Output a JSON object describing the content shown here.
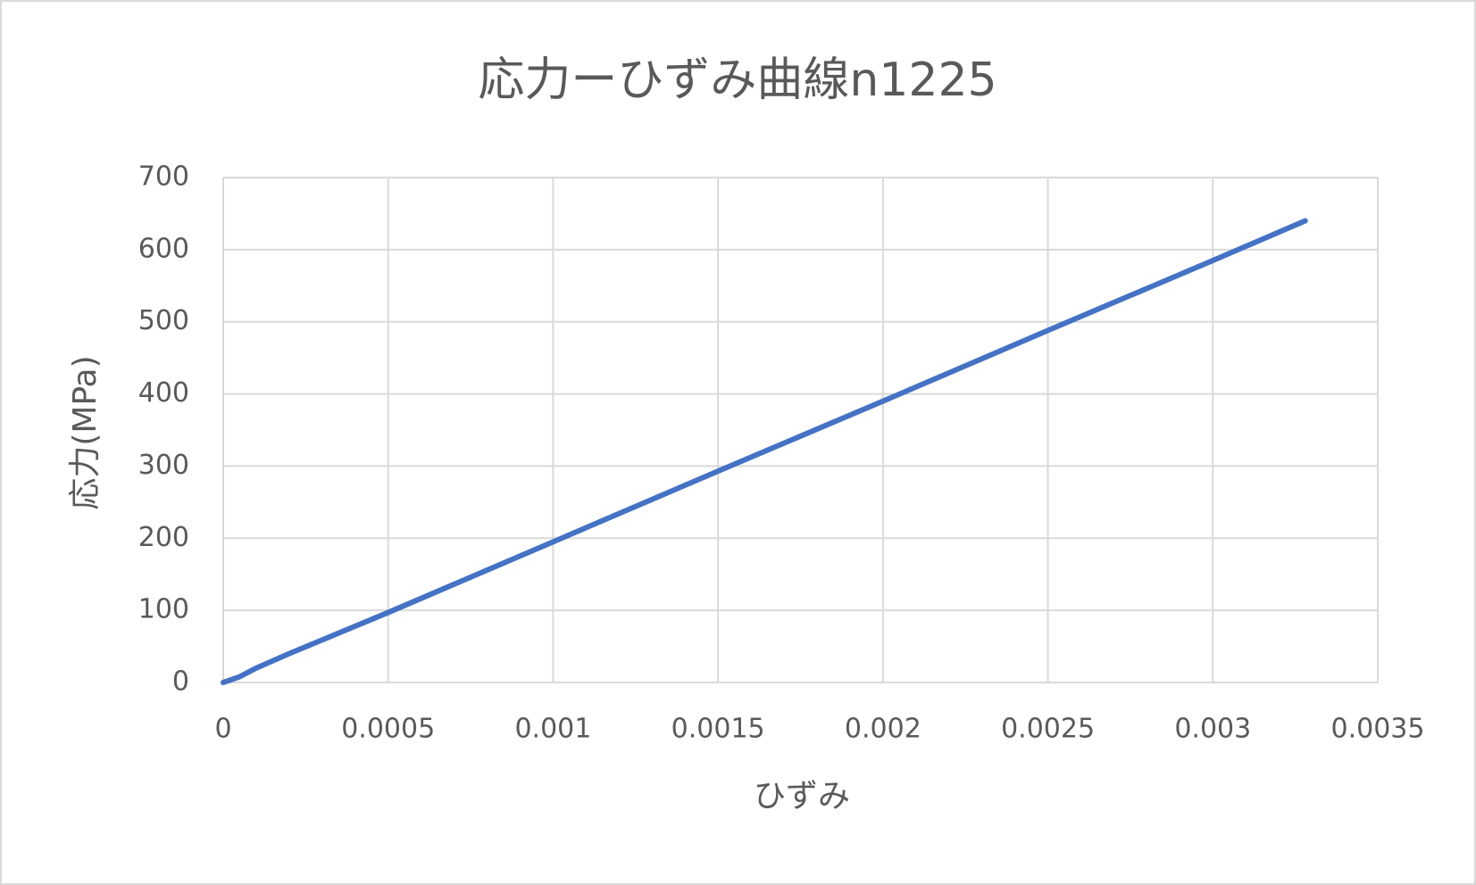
{
  "chart_data": {
    "type": "line",
    "title": "応力ーひずみ曲線n1225",
    "x_label": "ひずみ",
    "y_label": "応力(MPa)",
    "x": [
      0,
      5e-05,
      0.0001,
      0.0002,
      0.0005,
      0.001,
      0.0015,
      0.002,
      0.0025,
      0.003,
      0.00328
    ],
    "series": [
      {
        "name": "応力",
        "color": "#4472c4",
        "values": [
          0,
          8,
          20,
          40,
          97,
          195,
          293,
          390,
          488,
          585,
          640
        ]
      }
    ],
    "xlim": [
      0,
      0.0035
    ],
    "xticks": [
      0,
      0.0005,
      0.001,
      0.0015,
      0.002,
      0.0025,
      0.003,
      0.0035
    ],
    "ylim": [
      0,
      700
    ],
    "yticks": [
      0,
      100,
      200,
      300,
      400,
      500,
      600,
      700
    ],
    "grid": true
  }
}
